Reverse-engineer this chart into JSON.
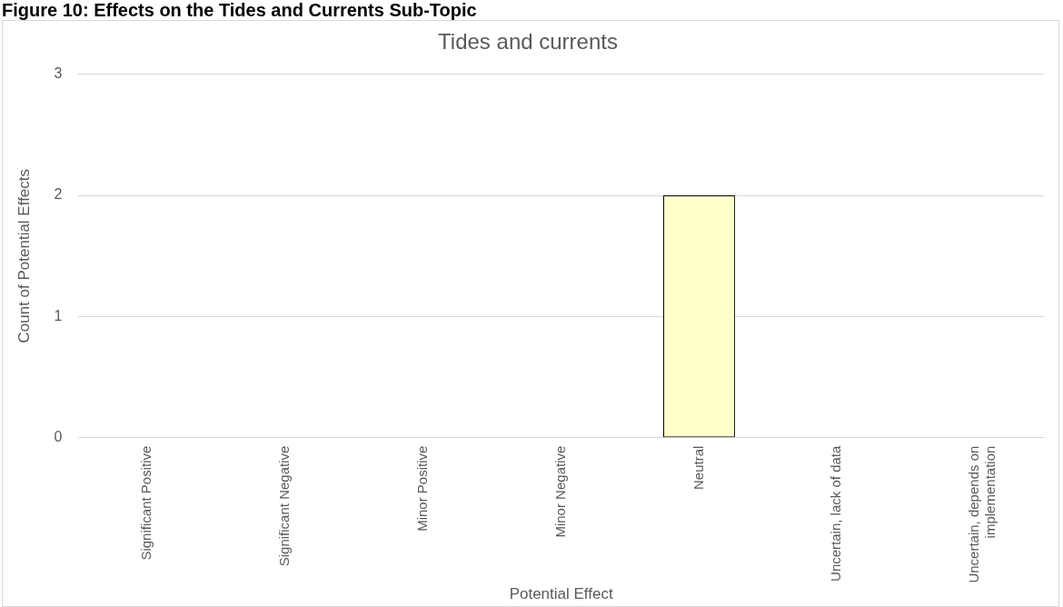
{
  "chart_data": {
    "type": "bar",
    "title": "Tides and currents",
    "xlabel": "Potential Effect",
    "ylabel": "Count of Potential Effects",
    "categories": [
      "Significant Positive",
      "Significant Negative",
      "Minor Positive",
      "Minor Negative",
      "Neutral",
      "Uncertain, lack of data",
      "Uncertain, depends on implementation"
    ],
    "values": [
      0,
      0,
      0,
      0,
      2,
      0,
      0
    ],
    "color": "#ffffcc",
    "ylim": [
      0,
      3
    ],
    "yticks": [
      0,
      1,
      2,
      3
    ],
    "grid": "y",
    "legend": false,
    "annotations": [
      "Figure 10: Effects on the Tides and Currents Sub-Topic"
    ]
  }
}
